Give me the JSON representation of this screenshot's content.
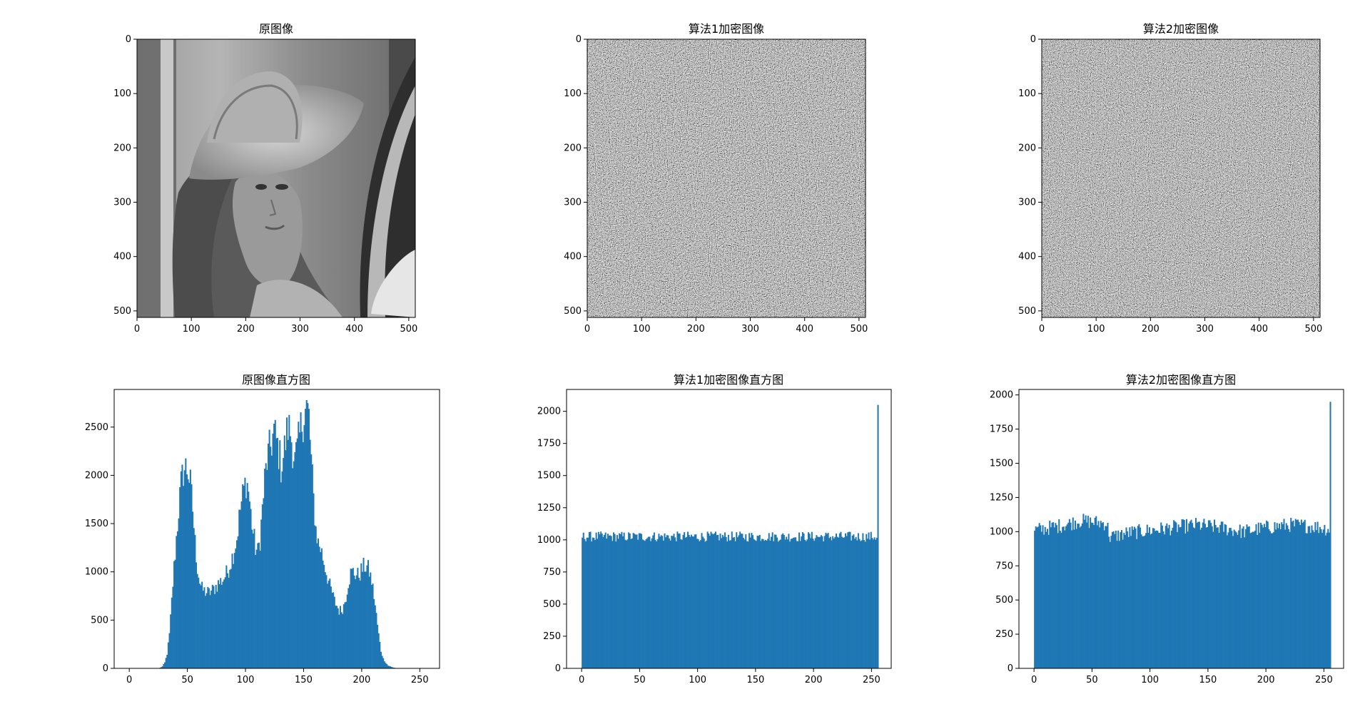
{
  "figure": {
    "panels": [
      {
        "id": "img0",
        "kind": "image",
        "title": "原图像",
        "image": "photo-grayscale-portrait-with-hat",
        "xlim": [
          0,
          512
        ],
        "ylim": [
          512,
          0
        ],
        "xticks": [
          "0",
          "100",
          "200",
          "300",
          "400",
          "500"
        ],
        "yticks": [
          "0",
          "100",
          "200",
          "300",
          "400",
          "500"
        ]
      },
      {
        "id": "img1",
        "kind": "image",
        "title": "算法1加密图像",
        "image": "noise-encrypted",
        "xlim": [
          0,
          512
        ],
        "ylim": [
          512,
          0
        ],
        "xticks": [
          "0",
          "100",
          "200",
          "300",
          "400",
          "500"
        ],
        "yticks": [
          "0",
          "100",
          "200",
          "300",
          "400",
          "500"
        ]
      },
      {
        "id": "img2",
        "kind": "image",
        "title": "算法2加密图像",
        "image": "noise-encrypted",
        "xlim": [
          0,
          512
        ],
        "ylim": [
          512,
          0
        ],
        "xticks": [
          "0",
          "100",
          "200",
          "300",
          "400",
          "500"
        ],
        "yticks": [
          "0",
          "100",
          "200",
          "300",
          "400",
          "500"
        ]
      }
    ],
    "bar_color": "#1f77b4"
  },
  "chart_data": [
    {
      "type": "bar",
      "title": "原图像直方图",
      "xlim": [
        -13,
        267
      ],
      "ylim": [
        0,
        2890
      ],
      "xticks": [
        0,
        50,
        100,
        150,
        200,
        250
      ],
      "yticks": [
        0,
        500,
        1000,
        1500,
        2000,
        2500
      ],
      "bins": "0-255",
      "profile_x": [
        0,
        25,
        28,
        30,
        32,
        34,
        36,
        38,
        40,
        42,
        44,
        46,
        48,
        50,
        52,
        54,
        56,
        58,
        60,
        62,
        64,
        66,
        68,
        70,
        72,
        76,
        80,
        84,
        88,
        92,
        95,
        98,
        100,
        102,
        104,
        106,
        108,
        110,
        112,
        114,
        116,
        118,
        120,
        122,
        124,
        126,
        128,
        130,
        132,
        134,
        136,
        138,
        140,
        142,
        144,
        146,
        148,
        150,
        152,
        154,
        156,
        158,
        160,
        162,
        164,
        166,
        168,
        170,
        172,
        174,
        176,
        178,
        180,
        182,
        184,
        186,
        188,
        190,
        192,
        194,
        196,
        198,
        200,
        202,
        204,
        206,
        208,
        210,
        212,
        214,
        216,
        218,
        220,
        222,
        224,
        226,
        228,
        230,
        235,
        255
      ],
      "profile_y": [
        0,
        0,
        20,
        60,
        150,
        350,
        700,
        1050,
        1350,
        1650,
        1900,
        2050,
        2080,
        2050,
        1900,
        1650,
        1300,
        1050,
        900,
        820,
        800,
        790,
        780,
        800,
        820,
        880,
        920,
        1000,
        1150,
        1350,
        1650,
        1850,
        1950,
        1850,
        1600,
        1400,
        1250,
        1200,
        1350,
        1650,
        1950,
        2150,
        2250,
        2350,
        2450,
        2350,
        2250,
        2100,
        2200,
        2350,
        2500,
        2450,
        2300,
        2150,
        2250,
        2400,
        2550,
        2650,
        2700,
        2600,
        2150,
        1750,
        1450,
        1300,
        1250,
        1150,
        1050,
        950,
        850,
        780,
        700,
        650,
        600,
        600,
        650,
        750,
        900,
        980,
        1000,
        980,
        960,
        990,
        1030,
        1060,
        1050,
        1000,
        900,
        750,
        550,
        350,
        180,
        100,
        60,
        30,
        20,
        10,
        5,
        2,
        0,
        0
      ]
    },
    {
      "type": "bar",
      "title": "算法1加密图像直方图",
      "xlim": [
        -13,
        267
      ],
      "ylim": [
        0,
        2170
      ],
      "xticks": [
        0,
        50,
        100,
        150,
        200,
        250
      ],
      "yticks": [
        0,
        250,
        500,
        750,
        1000,
        1250,
        1500,
        1750,
        2000
      ],
      "bins": "0-255",
      "baseline": 1025,
      "spread": 40,
      "spike": {
        "x": 255,
        "y": 2050
      }
    },
    {
      "type": "bar",
      "title": "算法2加密图像直方图",
      "xlim": [
        -13,
        267
      ],
      "ylim": [
        0,
        2040
      ],
      "xticks": [
        0,
        50,
        100,
        150,
        200,
        250
      ],
      "yticks": [
        0,
        250,
        500,
        750,
        1000,
        1250,
        1500,
        1750,
        2000
      ],
      "bins": "0-255",
      "profile_x": [
        0,
        20,
        40,
        62,
        65,
        80,
        100,
        120,
        140,
        160,
        180,
        200,
        220,
        240,
        254
      ],
      "profile_y": [
        1010,
        1040,
        1080,
        1060,
        960,
        990,
        1010,
        1030,
        1050,
        1030,
        1000,
        1030,
        1050,
        1040,
        1020
      ],
      "spread": 55,
      "spike": {
        "x": 255,
        "y": 1950
      }
    }
  ]
}
